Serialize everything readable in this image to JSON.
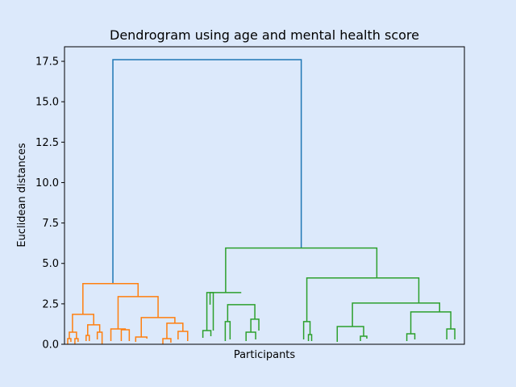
{
  "chart_data": {
    "type": "dendrogram",
    "title": "Dendrogram using age and mental health score",
    "xlabel": "Participants",
    "ylabel": "Euclidean distances",
    "ylim": [
      0,
      18.4
    ],
    "yticks": [
      "0.0",
      "2.5",
      "5.0",
      "7.5",
      "10.0",
      "12.5",
      "15.0",
      "17.5"
    ],
    "ytick_values": [
      0,
      2.5,
      5.0,
      7.5,
      10.0,
      12.5,
      15.0,
      17.5
    ],
    "xlim": [
      0,
      100
    ],
    "grid": false,
    "colors": {
      "root": "#1f77b4",
      "cluster1": "#ff7f0e",
      "cluster2": "#2ca02c",
      "background": "#dce9fb"
    },
    "links": [
      {
        "x": [
          12.1,
          59.2
        ],
        "y": [
          3.75,
          5.95
        ],
        "h": 17.6,
        "c": "root"
      },
      {
        "x": [
          4.6,
          18.4
        ],
        "y": [
          1.85,
          2.95
        ],
        "h": 3.75,
        "c": "cluster1"
      },
      {
        "x": [
          2.0,
          7.3
        ],
        "y": [
          0.75,
          1.2
        ],
        "h": 1.85,
        "c": "cluster1"
      },
      {
        "x": [
          1.2,
          3.0
        ],
        "y": [
          0.35,
          0.35
        ],
        "h": 0.75,
        "c": "cluster1"
      },
      {
        "x": [
          0.8,
          1.6
        ],
        "y": [
          0.0,
          0.15
        ],
        "h": 0.35,
        "c": "cluster1"
      },
      {
        "x": [
          2.6,
          3.4
        ],
        "y": [
          0.0,
          0.15
        ],
        "h": 0.35,
        "c": "cluster1"
      },
      {
        "x": [
          5.8,
          8.8
        ],
        "y": [
          0.55,
          0.75
        ],
        "h": 1.2,
        "c": "cluster1"
      },
      {
        "x": [
          5.4,
          6.2
        ],
        "y": [
          0.2,
          0.2
        ],
        "h": 0.55,
        "c": "cluster1"
      },
      {
        "x": [
          8.2,
          9.4
        ],
        "y": [
          0.3,
          0.0
        ],
        "h": 0.75,
        "c": "cluster1"
      },
      {
        "x": [
          13.4,
          23.4
        ],
        "y": [
          0.95,
          1.65
        ],
        "h": 2.95,
        "c": "cluster1"
      },
      {
        "x": [
          11.6,
          15.2
        ],
        "y": [
          0.2,
          0.9
        ],
        "h": 0.95,
        "c": "cluster1"
      },
      {
        "x": [
          14.2,
          16.2
        ],
        "y": [
          0.2,
          0.2
        ],
        "h": 0.9,
        "c": "cluster1"
      },
      {
        "x": [
          19.2,
          27.6
        ],
        "y": [
          0.45,
          1.3
        ],
        "h": 1.65,
        "c": "cluster1"
      },
      {
        "x": [
          17.8,
          20.6
        ],
        "y": [
          0.15,
          0.35
        ],
        "h": 0.45,
        "c": "cluster1"
      },
      {
        "x": [
          25.6,
          29.6
        ],
        "y": [
          0.35,
          0.8
        ],
        "h": 1.3,
        "c": "cluster1"
      },
      {
        "x": [
          24.6,
          26.6
        ],
        "y": [
          0.0,
          0.1
        ],
        "h": 0.35,
        "c": "cluster1"
      },
      {
        "x": [
          28.4,
          30.8
        ],
        "y": [
          0.3,
          0.2
        ],
        "h": 0.8,
        "c": "cluster1"
      },
      {
        "x": [
          40.3,
          78.1
        ],
        "y": [
          3.2,
          4.1
        ],
        "h": 5.95,
        "c": "cluster2"
      },
      {
        "x": [
          36.4,
          44.2
        ],
        "y": [
          2.45,
          3.2
        ],
        "h": 3.2,
        "c": "cluster2"
      },
      {
        "x": [
          35.6,
          37.2
        ],
        "y": [
          0.85,
          0.85
        ],
        "h": 3.2,
        "c": "cluster2"
      },
      {
        "x": [
          34.6,
          36.6
        ],
        "y": [
          0.4,
          0.5
        ],
        "h": 0.85,
        "c": "cluster2"
      },
      {
        "x": [
          40.8,
          47.6
        ],
        "y": [
          1.4,
          1.55
        ],
        "h": 2.45,
        "c": "cluster2"
      },
      {
        "x": [
          40.2,
          41.4
        ],
        "y": [
          0.2,
          0.3
        ],
        "h": 1.4,
        "c": "cluster2"
      },
      {
        "x": [
          46.6,
          48.6
        ],
        "y": [
          0.75,
          0.85
        ],
        "h": 1.55,
        "c": "cluster2"
      },
      {
        "x": [
          45.4,
          47.8
        ],
        "y": [
          0.2,
          0.3
        ],
        "h": 0.75,
        "c": "cluster2"
      },
      {
        "x": [
          60.6,
          88.6
        ],
        "y": [
          1.4,
          2.55
        ],
        "h": 4.1,
        "c": "cluster2"
      },
      {
        "x": [
          59.8,
          61.4
        ],
        "y": [
          0.3,
          0.6
        ],
        "h": 1.4,
        "c": "cluster2"
      },
      {
        "x": [
          61.0,
          61.8
        ],
        "y": [
          0.2,
          0.2
        ],
        "h": 0.6,
        "c": "cluster2"
      },
      {
        "x": [
          72.0,
          93.8
        ],
        "y": [
          1.1,
          2.0
        ],
        "h": 2.55,
        "c": "cluster2"
      },
      {
        "x": [
          68.2,
          74.8
        ],
        "y": [
          0.15,
          0.5
        ],
        "h": 1.1,
        "c": "cluster2"
      },
      {
        "x": [
          74.0,
          75.6
        ],
        "y": [
          0.2,
          0.35
        ],
        "h": 0.5,
        "c": "cluster2"
      },
      {
        "x": [
          86.6,
          96.6
        ],
        "y": [
          0.65,
          0.95
        ],
        "h": 2.0,
        "c": "cluster2"
      },
      {
        "x": [
          85.6,
          87.6
        ],
        "y": [
          0.2,
          0.3
        ],
        "h": 0.65,
        "c": "cluster2"
      },
      {
        "x": [
          95.6,
          97.6
        ],
        "y": [
          0.3,
          0.3
        ],
        "h": 0.95,
        "c": "cluster2"
      }
    ]
  }
}
